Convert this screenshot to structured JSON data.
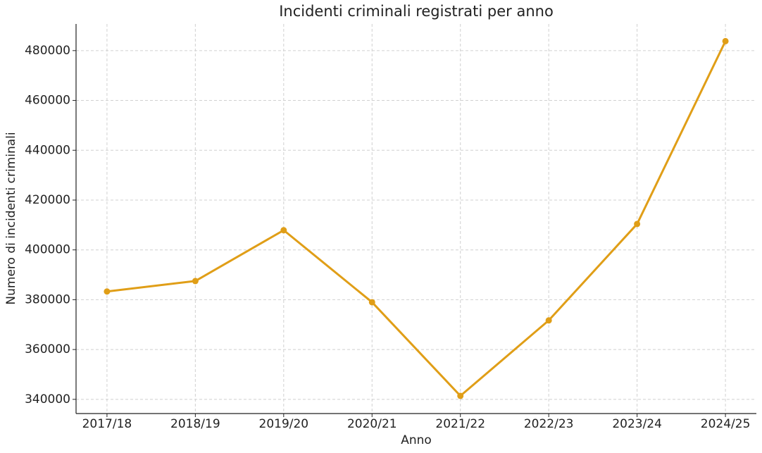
{
  "chart_data": {
    "type": "line",
    "title": "Incidenti criminali registrati per anno",
    "xlabel": "Anno",
    "ylabel": "Numero di incidenti criminali",
    "categories": [
      "2017/18",
      "2018/19",
      "2019/20",
      "2020/21",
      "2021/22",
      "2022/23",
      "2023/24",
      "2024/25"
    ],
    "series": [
      {
        "name": "Incidenti",
        "color": "#e09e17",
        "values": [
          383300,
          387500,
          407900,
          379000,
          341400,
          371700,
          410400,
          483800
        ]
      }
    ],
    "ylim": [
      334300,
      490700
    ],
    "yticks": [
      340000,
      360000,
      380000,
      400000,
      420000,
      440000,
      460000,
      480000
    ],
    "grid": true
  }
}
